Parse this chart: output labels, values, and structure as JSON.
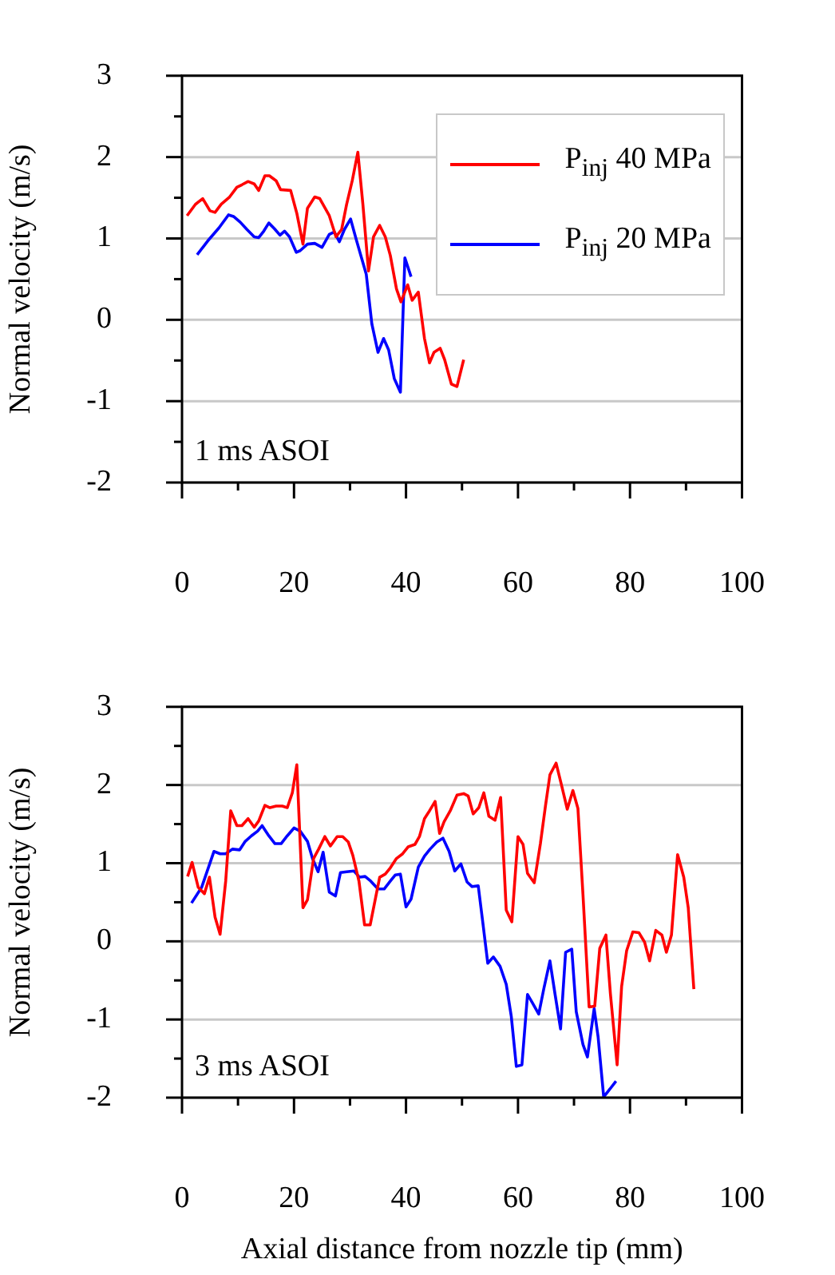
{
  "chart_data": [
    {
      "type": "line",
      "ylabel": "Normal velocity (m/s)",
      "xlim": [
        0,
        100
      ],
      "ylim": [
        -2,
        3
      ],
      "xticks": [
        0,
        {
          "value": 10,
          "label": null
        },
        20,
        {
          "value": 30,
          "label": null
        },
        40,
        {
          "value": 50,
          "label": null
        },
        60,
        {
          "value": 70,
          "label": null
        },
        80,
        {
          "value": 90,
          "label": null
        },
        100
      ],
      "yticks": [
        -2,
        {
          "value": -1.5,
          "label": null
        },
        -1,
        {
          "value": -0.5,
          "label": null
        },
        0,
        {
          "value": 0.5,
          "label": null
        },
        1,
        {
          "value": 1.5,
          "label": null
        },
        2,
        {
          "value": 2.5,
          "label": null
        },
        3
      ],
      "grid": "y",
      "legend": "top right",
      "marker": "none",
      "line_style": "solid",
      "annotations": [
        "1 ms ASOI"
      ],
      "series": [
        {
          "name": "P$_{inj}$ 40 MPa",
          "color": "#ff0000",
          "x": [
            0.9,
            2.4,
            3.7,
            5.0,
            5.9,
            7.0,
            8.5,
            9.8,
            10.7,
            11.8,
            12.9,
            13.7,
            14.8,
            15.6,
            16.8,
            17.6,
            19.4,
            20.5,
            21.6,
            22.4,
            23.7,
            24.6,
            26.3,
            27.5,
            28.5,
            29.4,
            30.4,
            31.4,
            32.3,
            33.3,
            34.2,
            35.3,
            36.3,
            37.2,
            38.3,
            39.1,
            40.3,
            41.1,
            42.2,
            43.3,
            44.2,
            45.0,
            46.1,
            46.9,
            48.1,
            49.1,
            50.3
          ],
          "values": [
            1.28,
            1.42,
            1.49,
            1.34,
            1.32,
            1.42,
            1.51,
            1.63,
            1.66,
            1.7,
            1.67,
            1.59,
            1.77,
            1.77,
            1.71,
            1.6,
            1.59,
            1.31,
            0.93,
            1.37,
            1.51,
            1.49,
            1.28,
            1.02,
            1.11,
            1.42,
            1.71,
            2.06,
            1.42,
            0.6,
            1.02,
            1.16,
            1.02,
            0.79,
            0.38,
            0.22,
            0.43,
            0.24,
            0.34,
            -0.23,
            -0.53,
            -0.4,
            -0.35,
            -0.49,
            -0.79,
            -0.82,
            -0.49
          ]
        },
        {
          "name": "P$_{inj}$ 20 MPa",
          "color": "#0000ff",
          "x": [
            2.7,
            4.6,
            6.6,
            8.3,
            9.2,
            10.4,
            11.6,
            12.9,
            13.7,
            14.6,
            15.5,
            16.5,
            17.5,
            18.3,
            19.2,
            20.4,
            21.1,
            22.4,
            23.7,
            25.0,
            26.3,
            27.2,
            28.1,
            29.0,
            30.1,
            31.1,
            32.9,
            33.9,
            35.0,
            36.0,
            36.9,
            37.9,
            39.0,
            39.8,
            40.9
          ],
          "values": [
            0.8,
            0.97,
            1.13,
            1.29,
            1.27,
            1.2,
            1.11,
            1.02,
            1.01,
            1.09,
            1.19,
            1.12,
            1.04,
            1.09,
            1.02,
            0.83,
            0.85,
            0.93,
            0.94,
            0.89,
            1.05,
            1.08,
            0.96,
            1.11,
            1.24,
            0.99,
            0.56,
            -0.05,
            -0.4,
            -0.23,
            -0.37,
            -0.72,
            -0.89,
            0.76,
            0.53
          ]
        }
      ]
    },
    {
      "type": "line",
      "ylabel": "Normal velocity (m/s)",
      "xlabel": "Axial distance from nozzle tip (mm)",
      "xlim": [
        0,
        100
      ],
      "ylim": [
        -2,
        3
      ],
      "xticks": [
        0,
        {
          "value": 10,
          "label": null
        },
        20,
        {
          "value": 30,
          "label": null
        },
        40,
        {
          "value": 50,
          "label": null
        },
        60,
        {
          "value": 70,
          "label": null
        },
        80,
        {
          "value": 90,
          "label": null
        },
        100
      ],
      "yticks": [
        -2,
        {
          "value": -1.5,
          "label": null
        },
        -1,
        {
          "value": -0.5,
          "label": null
        },
        0,
        {
          "value": 0.5,
          "label": null
        },
        1,
        {
          "value": 1.5,
          "label": null
        },
        2,
        {
          "value": 2.5,
          "label": null
        },
        3
      ],
      "grid": "y",
      "marker": "none",
      "line_style": "solid",
      "annotations": [
        "3 ms ASOI"
      ],
      "series": [
        {
          "color": "#ff0000",
          "x": [
            1.0,
            1.8,
            2.9,
            4.0,
            4.9,
            5.9,
            6.8,
            7.8,
            8.7,
            9.8,
            10.7,
            11.8,
            12.9,
            13.7,
            14.8,
            15.7,
            16.8,
            17.9,
            18.8,
            19.7,
            20.5,
            21.6,
            22.4,
            23.5,
            24.4,
            25.5,
            26.5,
            27.7,
            28.7,
            29.7,
            30.5,
            31.6,
            32.6,
            33.6,
            34.6,
            35.3,
            36.3,
            37.2,
            38.3,
            39.4,
            40.4,
            41.6,
            42.4,
            43.3,
            44.2,
            45.2,
            46.0,
            46.8,
            47.9,
            49.1,
            50.3,
            51.1,
            52.0,
            53.0,
            53.9,
            54.8,
            55.9,
            56.9,
            57.9,
            58.9,
            60.0,
            60.9,
            61.7,
            62.9,
            64.0,
            64.9,
            65.7,
            66.8,
            67.8,
            68.8,
            69.8,
            70.7,
            71.6,
            72.7,
            73.7,
            74.6,
            75.7,
            76.5,
            77.7,
            78.5,
            79.4,
            80.5,
            81.6,
            82.6,
            83.5,
            84.6,
            85.7,
            86.5,
            87.4,
            88.5,
            89.6,
            90.4,
            91.4
          ],
          "values": [
            0.83,
            1.01,
            0.69,
            0.61,
            0.82,
            0.31,
            0.09,
            0.77,
            1.67,
            1.48,
            1.48,
            1.57,
            1.46,
            1.54,
            1.74,
            1.71,
            1.73,
            1.73,
            1.71,
            1.9,
            2.26,
            0.43,
            0.53,
            1.06,
            1.18,
            1.34,
            1.22,
            1.34,
            1.34,
            1.27,
            1.1,
            0.77,
            0.21,
            0.21,
            0.57,
            0.82,
            0.86,
            0.94,
            1.06,
            1.12,
            1.21,
            1.24,
            1.34,
            1.57,
            1.67,
            1.79,
            1.38,
            1.53,
            1.67,
            1.87,
            1.89,
            1.86,
            1.63,
            1.71,
            1.9,
            1.6,
            1.55,
            1.84,
            0.4,
            0.25,
            1.34,
            1.24,
            0.87,
            0.75,
            1.25,
            1.73,
            2.13,
            2.28,
            1.99,
            1.69,
            1.93,
            1.7,
            0.6,
            -0.84,
            -0.83,
            -0.09,
            0.08,
            -0.67,
            -1.58,
            -0.58,
            -0.12,
            0.12,
            0.11,
            -0.01,
            -0.25,
            0.14,
            0.08,
            -0.14,
            0.08,
            1.11,
            0.82,
            0.43,
            -0.61
          ]
        },
        {
          "color": "#0000ff",
          "x": [
            1.7,
            3.5,
            4.6,
            5.7,
            6.8,
            7.8,
            9.0,
            10.3,
            11.3,
            12.4,
            13.5,
            14.3,
            15.5,
            16.6,
            17.7,
            18.8,
            20.0,
            21.1,
            22.4,
            23.3,
            24.3,
            25.2,
            26.3,
            27.4,
            28.3,
            29.4,
            30.7,
            31.7,
            32.7,
            33.7,
            35.0,
            36.1,
            37.2,
            38.1,
            39.0,
            40.0,
            40.9,
            42.2,
            43.3,
            44.3,
            45.5,
            46.6,
            47.7,
            48.7,
            49.8,
            50.9,
            51.8,
            52.9,
            53.7,
            54.6,
            55.6,
            56.8,
            57.9,
            58.8,
            59.7,
            60.7,
            61.7,
            62.6,
            63.7,
            64.6,
            65.7,
            66.6,
            67.6,
            68.5,
            69.6,
            70.4,
            71.6,
            72.4,
            73.6,
            74.3,
            75.3,
            76.3,
            77.5
          ],
          "values": [
            0.49,
            0.69,
            0.92,
            1.15,
            1.12,
            1.12,
            1.18,
            1.17,
            1.28,
            1.35,
            1.41,
            1.48,
            1.35,
            1.25,
            1.25,
            1.35,
            1.45,
            1.41,
            1.28,
            1.06,
            0.89,
            1.14,
            0.63,
            0.58,
            0.88,
            0.89,
            0.9,
            0.82,
            0.83,
            0.77,
            0.67,
            0.67,
            0.77,
            0.85,
            0.86,
            0.44,
            0.54,
            0.95,
            1.09,
            1.18,
            1.27,
            1.32,
            1.15,
            0.9,
            0.99,
            0.76,
            0.7,
            0.71,
            0.25,
            -0.28,
            -0.2,
            -0.32,
            -0.55,
            -0.96,
            -1.6,
            -1.58,
            -0.68,
            -0.79,
            -0.93,
            -0.61,
            -0.25,
            -0.67,
            -1.12,
            -0.14,
            -0.1,
            -0.9,
            -1.32,
            -1.48,
            -0.86,
            -1.22,
            -1.99,
            -1.9,
            -1.79
          ]
        }
      ]
    }
  ]
}
